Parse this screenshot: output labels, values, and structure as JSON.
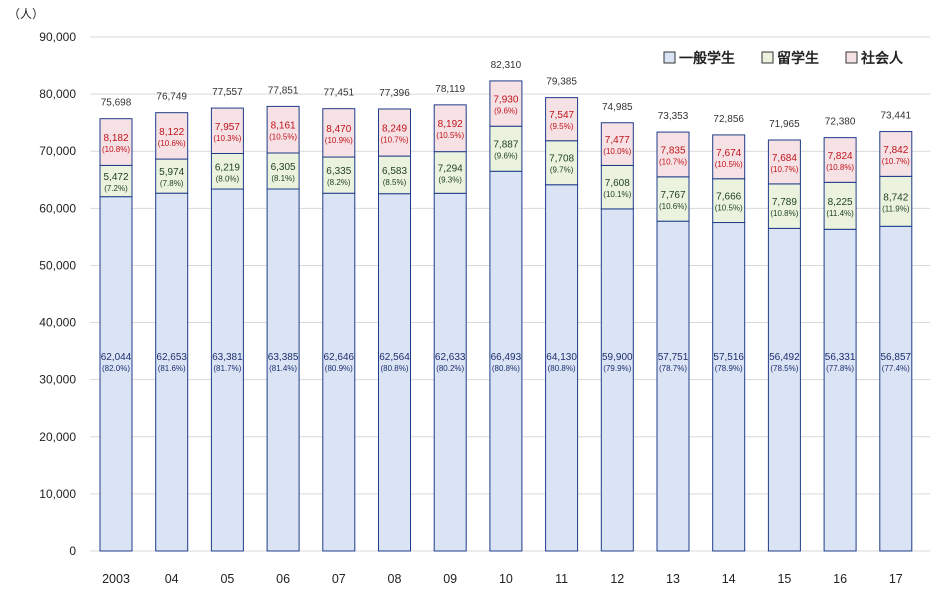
{
  "chart_data": {
    "type": "bar",
    "stacked": true,
    "unit_label": "（人）",
    "categories": [
      "2003",
      "04",
      "05",
      "06",
      "07",
      "08",
      "09",
      "10",
      "11",
      "12",
      "13",
      "14",
      "15",
      "16",
      "17"
    ],
    "ylim": [
      0,
      90000
    ],
    "yticks": [
      "0",
      "10,000",
      "20,000",
      "30,000",
      "40,000",
      "50,000",
      "60,000",
      "70,000",
      "80,000",
      "90,000"
    ],
    "ytick_values": [
      0,
      10000,
      20000,
      30000,
      40000,
      50000,
      60000,
      70000,
      80000,
      90000
    ],
    "grid": true,
    "legend_position": "top-right",
    "series": [
      {
        "name": "一般学生",
        "color": "#dbe4f5",
        "stroke": "#1f3c88",
        "label_color": "#1f2f6e",
        "values": [
          62044,
          62653,
          63381,
          63385,
          62646,
          62564,
          62633,
          66493,
          64130,
          59900,
          57751,
          57516,
          56492,
          56331,
          56857
        ],
        "labels": [
          "62,044",
          "62,653",
          "63,381",
          "63,385",
          "62,646",
          "62,564",
          "62,633",
          "66,493",
          "64,130",
          "59,900",
          "57,751",
          "57,516",
          "56,492",
          "56,331",
          "56,857"
        ],
        "percents": [
          "(82.0%)",
          "(81.6%)",
          "(81.7%)",
          "(81.4%)",
          "(80.9%)",
          "(80.8%)",
          "(80.2%)",
          "(80.8%)",
          "(80.8%)",
          "(79.9%)",
          "(78.7%)",
          "(78.9%)",
          "(78.5%)",
          "(77.8%)",
          "(77.4%)"
        ]
      },
      {
        "name": "留学生",
        "color": "#ebf3df",
        "stroke": "#1f3c88",
        "label_color": "#1f3f1f",
        "values": [
          5472,
          5974,
          6219,
          6305,
          6335,
          6583,
          7294,
          7887,
          7708,
          7608,
          7767,
          7666,
          7789,
          8225,
          8742
        ],
        "labels": [
          "5,472",
          "5,974",
          "6,219",
          "6,305",
          "6,335",
          "6,583",
          "7,294",
          "7,887",
          "7,708",
          "7,608",
          "7,767",
          "7,666",
          "7,789",
          "8,225",
          "8,742"
        ],
        "percents": [
          "(7.2%)",
          "(7.8%)",
          "(8.0%)",
          "(8.1%)",
          "(8.2%)",
          "(8.5%)",
          "(9.3%)",
          "(9.6%)",
          "(9.7%)",
          "(10.1%)",
          "(10.6%)",
          "(10.5%)",
          "(10.8%)",
          "(11.4%)",
          "(11.9%)"
        ]
      },
      {
        "name": "社会人",
        "color": "#f6e1e4",
        "stroke": "#1f3c88",
        "label_color": "#c0141c",
        "values": [
          8182,
          8122,
          7957,
          8161,
          8470,
          8249,
          8192,
          7930,
          7547,
          7477,
          7835,
          7674,
          7684,
          7824,
          7842
        ],
        "labels": [
          "8,182",
          "8,122",
          "7,957",
          "8,161",
          "8,470",
          "8,249",
          "8,192",
          "7,930",
          "7,547",
          "7,477",
          "7,835",
          "7,674",
          "7,684",
          "7,824",
          "7,842"
        ],
        "percents": [
          "(10.8%)",
          "(10.6%)",
          "(10.3%)",
          "(10.5%)",
          "(10.9%)",
          "(10.7%)",
          "(10.5%)",
          "(9.6%)",
          "(9.5%)",
          "(10.0%)",
          "(10.7%)",
          "(10.5%)",
          "(10.7%)",
          "(10.8%)",
          "(10.7%)"
        ]
      }
    ],
    "totals": [
      75698,
      76749,
      77557,
      77851,
      77451,
      77396,
      78119,
      82310,
      79385,
      74985,
      73353,
      72856,
      71965,
      72380,
      73441
    ],
    "total_labels": [
      "75,698",
      "76,749",
      "77,557",
      "77,851",
      "77,451",
      "77,396",
      "78,119",
      "82,310",
      "79,385",
      "74,985",
      "73,353",
      "72,856",
      "71,965",
      "72,380",
      "73,441"
    ]
  }
}
